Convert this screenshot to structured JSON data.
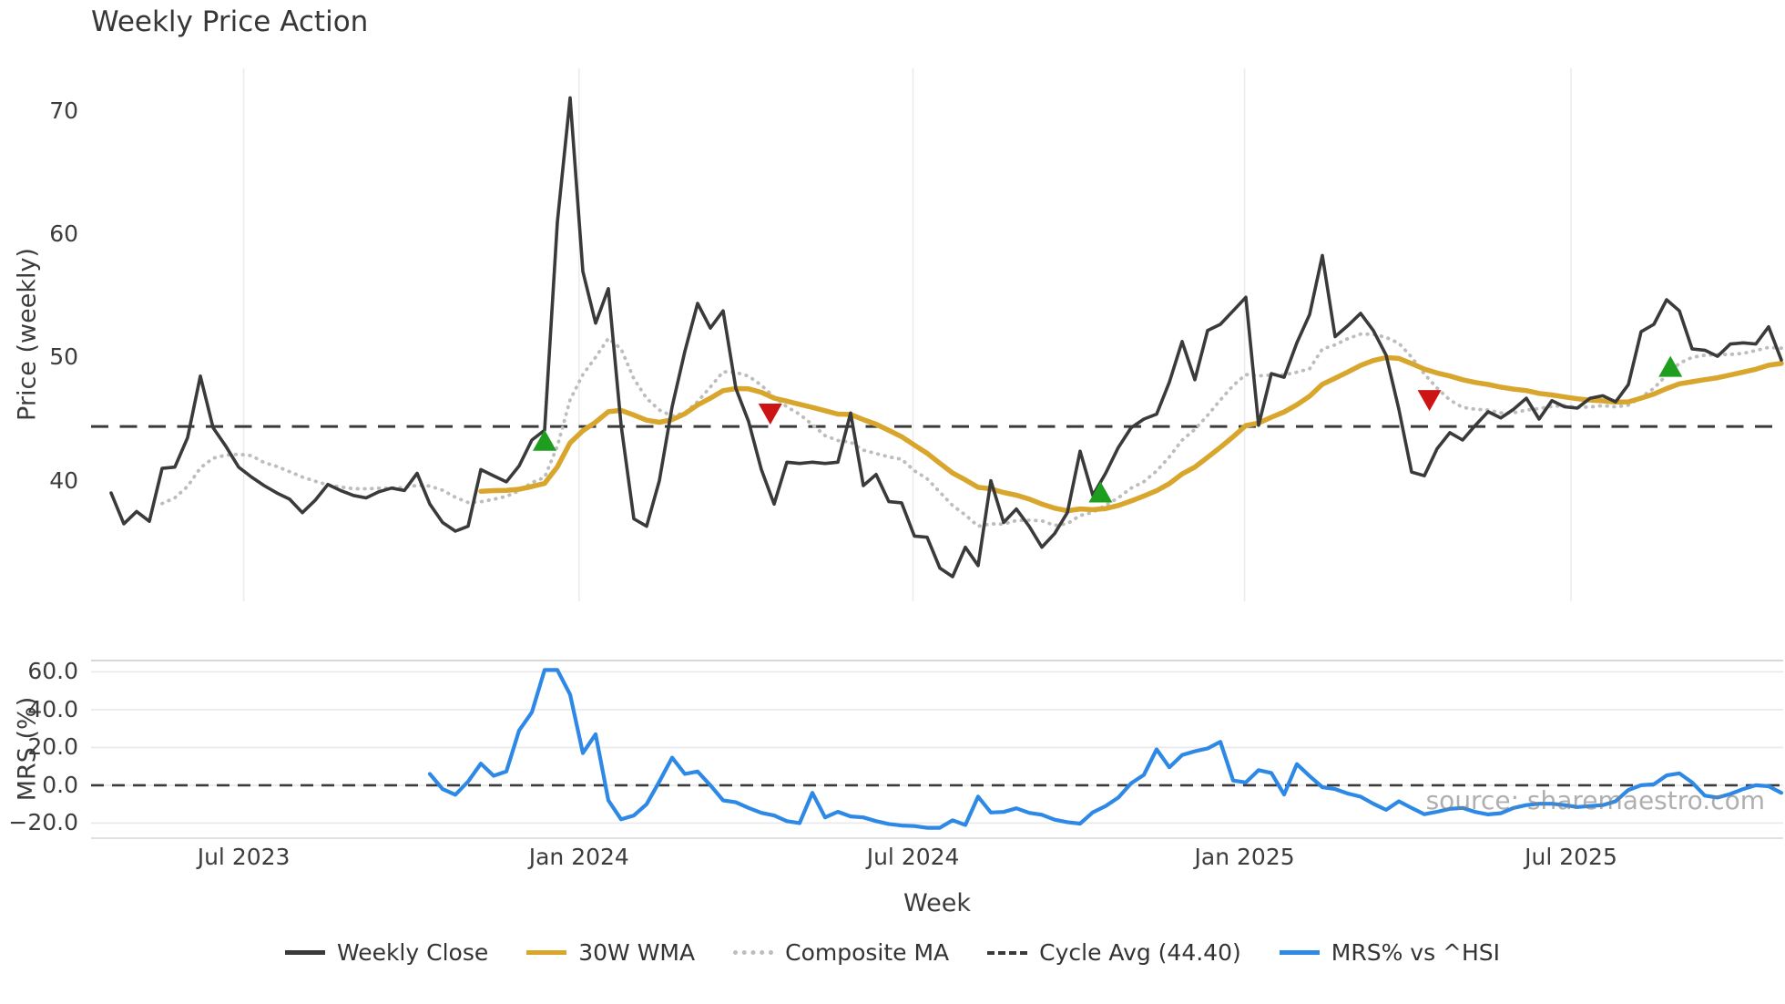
{
  "title": "Weekly Price Action",
  "watermark": "source: sharemaestro.com",
  "colors": {
    "close": "#3a3a3a",
    "wma": "#d9a62d",
    "composite": "#bdbdbd",
    "cycle": "#3a3a3a",
    "mrs": "#2d89e5",
    "buy": "#1e9e1e",
    "sell": "#cc1414",
    "grid_vertical": "#ececec",
    "grid_horizontal": "#e9e9e9",
    "spine": "#d7d7d7",
    "text": "#3c3c3c"
  },
  "price_panel": {
    "ylabel": "Price (weekly)",
    "yticks": [
      "70",
      "60",
      "50",
      "40"
    ],
    "ytick_values": [
      70,
      60,
      50,
      40
    ],
    "ylim": [
      30.2,
      73.5
    ],
    "cycle_avg": 44.4
  },
  "mrs_panel": {
    "ylabel": "MRS (%)",
    "yticks": [
      "60.0",
      "40.0",
      "20.0",
      "0.0",
      "−20.0"
    ],
    "ytick_values": [
      60,
      40,
      20,
      0,
      -20
    ],
    "ylim": [
      -28,
      66
    ],
    "zero_line": 0
  },
  "xaxis": {
    "label": "Week",
    "ticks": [
      {
        "week": 10.4,
        "label": "Jul 2023"
      },
      {
        "week": 36.7,
        "label": "Jan 2024"
      },
      {
        "week": 62.9,
        "label": "Jul 2024"
      },
      {
        "week": 88.9,
        "label": "Jan 2025"
      },
      {
        "week": 114.5,
        "label": "Jul 2025"
      }
    ]
  },
  "legend": [
    {
      "label": "Weekly Close",
      "style": "solid",
      "color": "#3a3a3a"
    },
    {
      "label": "30W WMA",
      "style": "solid",
      "color": "#d9a62d"
    },
    {
      "label": "Composite MA",
      "style": "dotted",
      "color": "#bdbdbd"
    },
    {
      "label": "Cycle Avg (44.40)",
      "style": "dashed",
      "color": "#3a3a3a"
    },
    {
      "label": "MRS% vs ^HSI",
      "style": "solid",
      "color": "#2d89e5"
    }
  ],
  "chart_data": [
    {
      "type": "line",
      "panel": "price",
      "name": "Weekly Close",
      "x_unit": "week_index",
      "start_week": 0,
      "values": [
        39.0,
        36.5,
        37.5,
        36.7,
        41.0,
        41.1,
        43.5,
        48.5,
        44.3,
        42.8,
        41.1,
        40.3,
        39.6,
        39.0,
        38.5,
        37.4,
        38.4,
        39.7,
        39.2,
        38.8,
        38.6,
        39.1,
        39.4,
        39.2,
        40.6,
        38.1,
        36.6,
        35.9,
        36.3,
        40.9,
        40.4,
        39.9,
        41.2,
        43.3,
        44.1,
        61.0,
        71.1,
        57.0,
        52.8,
        55.6,
        44.5,
        36.9,
        36.3,
        40.0,
        46.0,
        50.5,
        54.4,
        52.4,
        53.8,
        47.5,
        44.8,
        40.9,
        38.1,
        41.5,
        41.4,
        41.5,
        41.4,
        41.5,
        45.5,
        39.6,
        40.5,
        38.3,
        38.2,
        35.5,
        35.4,
        32.9,
        32.2,
        34.6,
        33.1,
        40.0,
        36.6,
        37.7,
        36.3,
        34.6,
        35.7,
        37.4,
        42.4,
        38.8,
        40.6,
        42.7,
        44.3,
        45.0,
        45.4,
        48.0,
        51.3,
        48.2,
        52.2,
        52.7,
        53.8,
        54.9,
        44.5,
        48.7,
        48.4,
        51.2,
        53.5,
        58.3,
        51.7,
        52.6,
        53.6,
        52.2,
        50.2,
        45.8,
        40.7,
        40.4,
        42.6,
        43.9,
        43.3,
        44.5,
        45.6,
        45.1,
        45.8,
        46.7,
        45.0,
        46.5,
        46.0,
        45.9,
        46.7,
        46.9,
        46.4,
        47.8,
        52.1,
        52.7,
        54.7,
        53.8,
        50.7,
        50.6,
        50.1,
        51.1,
        51.2,
        51.1,
        52.5,
        49.8
      ]
    },
    {
      "type": "line",
      "panel": "price",
      "name": "30W WMA",
      "derived": {
        "formula": "wma",
        "window": 30,
        "source": "Weekly Close"
      }
    },
    {
      "type": "line",
      "panel": "price",
      "name": "Composite MA",
      "derived": {
        "formula": "mean_of_smas",
        "windows": [
          5,
          10,
          20
        ],
        "source": "Weekly Close"
      }
    },
    {
      "type": "hline",
      "panel": "price",
      "name": "Cycle Avg",
      "value": 44.4
    },
    {
      "type": "scatter",
      "panel": "price",
      "name": "Buy signals",
      "marker": "triangle-up",
      "points": [
        {
          "week": 34.0,
          "value": 43.1
        },
        {
          "week": 77.6,
          "value": 38.9
        },
        {
          "week": 122.3,
          "value": 49.1
        }
      ]
    },
    {
      "type": "scatter",
      "panel": "price",
      "name": "Sell signals",
      "marker": "triangle-down",
      "points": [
        {
          "week": 51.7,
          "value": 45.6
        },
        {
          "week": 103.4,
          "value": 46.7
        }
      ]
    },
    {
      "type": "line",
      "panel": "mrs",
      "name": "MRS% vs ^HSI",
      "x_unit": "week_index",
      "start_week": 25,
      "values": [
        6,
        -2,
        -5,
        2,
        11.5,
        5,
        7.3,
        29,
        38.6,
        61,
        61,
        48,
        17,
        27,
        -8,
        -18,
        -16,
        -10,
        2,
        14.6,
        6,
        7.3,
        0,
        -8,
        -9,
        -12,
        -14.6,
        -16,
        -19,
        -20,
        -4,
        -17,
        -14,
        -16.5,
        -17,
        -19,
        -20.5,
        -21.3,
        -21.6,
        -22.5,
        -22.5,
        -18.5,
        -21,
        -6,
        -14.4,
        -14.1,
        -12.2,
        -14.6,
        -15.6,
        -18.2,
        -19.5,
        -20.3,
        -14.3,
        -11,
        -6.5,
        1,
        5.5,
        19,
        9.5,
        16,
        18,
        19.5,
        23,
        2.5,
        1.5,
        8,
        6.5,
        -4.9,
        11.2,
        4.9,
        -1,
        -2,
        -4.4,
        -6,
        -9.8,
        -13,
        -8.5,
        -12,
        -15.3,
        -14,
        -12.5,
        -12,
        -14.1,
        -15.4,
        -14.8,
        -12,
        -10.5,
        -9.8,
        -9.8,
        -10.5,
        -11.5,
        -11,
        -10.5,
        -8.5,
        -2.5,
        0,
        0.5,
        5.2,
        6.3,
        1.5,
        -5.5,
        -6.5,
        -4.6,
        -2,
        0,
        -0.5,
        -4
      ]
    }
  ]
}
